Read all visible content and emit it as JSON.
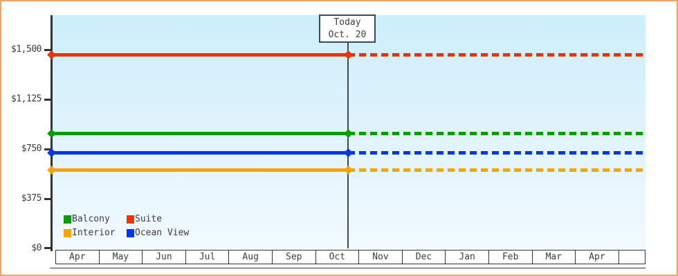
{
  "chart_data": {
    "type": "line",
    "x_categories": [
      "Apr",
      "May",
      "Jun",
      "Jul",
      "Aug",
      "Sep",
      "Oct",
      "Nov",
      "Dec",
      "Jan",
      "Feb",
      "Mar",
      "Apr"
    ],
    "y_tick_labels": [
      "$0",
      "$375",
      "$750",
      "$1,125",
      "$1,500"
    ],
    "y_tick_values": [
      0,
      375,
      750,
      1125,
      1500
    ],
    "ylim": [
      0,
      1760
    ],
    "grid": "off",
    "legend_position": "bottom-left",
    "today": {
      "line1": "Today",
      "line2": "Oct. 20"
    },
    "projection_note": "lines are solid from Apr to Oct 20 (today), then dashed (projected) to end of axis",
    "series": [
      {
        "name": "Suite",
        "value": 1460,
        "color": "#ee3208",
        "style": "solid-then-dashed"
      },
      {
        "name": "Balcony",
        "value": 865,
        "color": "#0a9b0a",
        "style": "solid-then-dashed"
      },
      {
        "name": "Ocean View",
        "value": 720,
        "color": "#0535ee",
        "style": "solid-then-dashed"
      },
      {
        "name": "Interior",
        "value": 590,
        "color": "#f5a50a",
        "style": "solid-then-dashed"
      }
    ]
  },
  "legend": {
    "items": [
      {
        "label": "Balcony",
        "color": "#0a9b0a"
      },
      {
        "label": "Suite",
        "color": "#ee3208"
      },
      {
        "label": "Interior",
        "color": "#f5a50a"
      },
      {
        "label": "Ocean View",
        "color": "#0535ee"
      }
    ]
  },
  "colors": {
    "page_border": "#eda55d",
    "axis": "#333333",
    "today_marker": "#3d4a52",
    "plot_gradient_top": "#cdeefb",
    "plot_gradient_bottom": "#f1faff",
    "text": "#3c3c3c"
  }
}
